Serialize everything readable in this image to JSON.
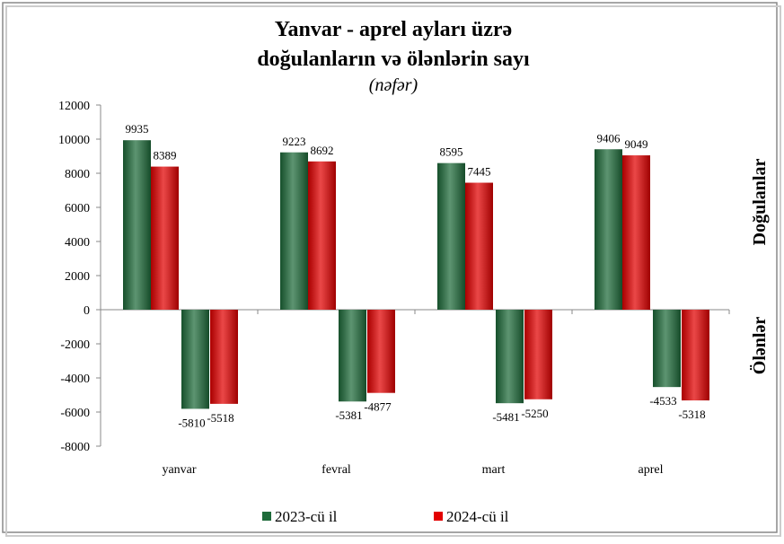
{
  "chart_data": {
    "type": "bar",
    "title": "Yanvar - aprel ayları üzrə",
    "subtitle": "doğulanların və ölənlərin sayı",
    "unit": "(nəfər)",
    "side_labels": [
      "Doğulanlar",
      "Ölənlər"
    ],
    "categories": [
      "yanvar",
      "fevral",
      "mart",
      "aprel"
    ],
    "series": [
      {
        "name": "2023-cü il",
        "color": "#1e6b3a",
        "values": [
          9935,
          9223,
          8595,
          9406
        ]
      },
      {
        "name": "2024-cü il",
        "color": "#e30000",
        "values": [
          8389,
          8692,
          7445,
          9049
        ]
      },
      {
        "color": "#1e6b3a",
        "values": [
          -5810,
          -5381,
          -5481,
          -4533
        ]
      },
      {
        "color": "#e30000",
        "values": [
          -5518,
          -4877,
          -5250,
          -5318
        ]
      }
    ],
    "ylim": [
      -8000,
      12000
    ],
    "yticks": [
      -8000,
      -6000,
      -4000,
      -2000,
      0,
      2000,
      4000,
      6000,
      8000,
      10000,
      12000
    ],
    "legend": "bottom"
  }
}
